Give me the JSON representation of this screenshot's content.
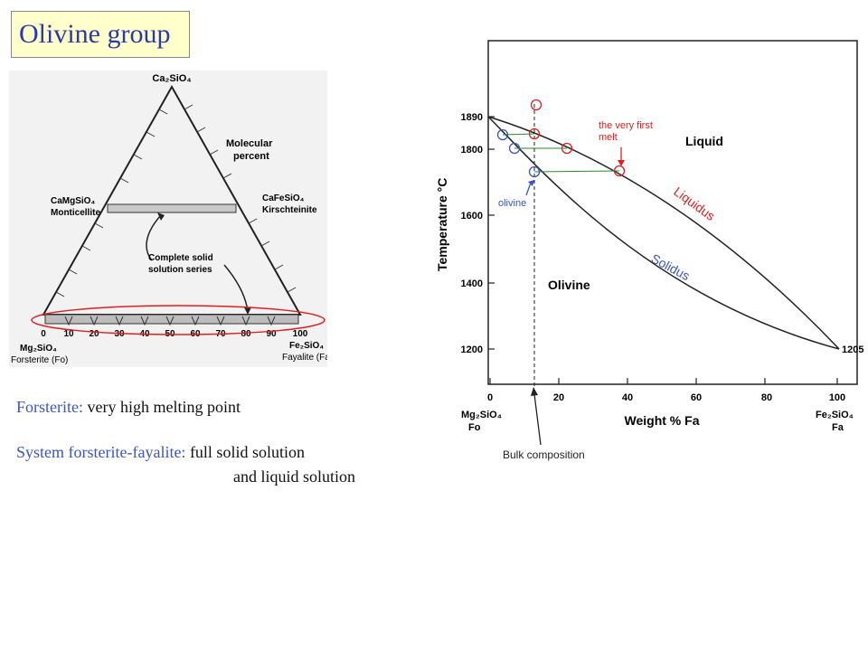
{
  "title": "Olivine group",
  "ternary": {
    "apex_label": "Ca₂SiO₄",
    "left_mid_formula": "CaMgSiO₄",
    "left_mid_name": "Monticellite",
    "right_mid_formula": "CaFeSiO₄",
    "right_mid_name": "Kirschteinite",
    "molecular_line1": "Molecular",
    "molecular_line2": "percent",
    "solid_line1": "Complete solid",
    "solid_line2": "solution series",
    "bottom_left_formula": "Mg₂SiO₄",
    "bottom_left_name": "Forsterite (Fo)",
    "bottom_right_formula": "Fe₂SiO₄",
    "bottom_right_name": "Fayalite (Fa)",
    "ticks": [
      "0",
      "10",
      "20",
      "30",
      "40",
      "50",
      "60",
      "70",
      "80",
      "90",
      "100"
    ]
  },
  "notes": {
    "line1_label": "Forsterite:",
    "line1_text": "very high melting point",
    "line2_label": "System forsterite-fayalite:",
    "line2_text": "full solid solution",
    "line3_text": "and liquid solution"
  },
  "phase_diagram": {
    "ylabel": "Temperature °C",
    "xlabel": "Weight % Fa",
    "x_ticks": [
      "0",
      "20",
      "40",
      "60",
      "80",
      "100"
    ],
    "y_ticks": [
      "1200",
      "1400",
      "1600",
      "1800",
      "1890"
    ],
    "right_temp": "1205",
    "left_end_formula": "Mg₂SiO₄",
    "left_end_abbr": "Fo",
    "right_end_formula": "Fe₂SiO₄",
    "right_end_abbr": "Fa",
    "liquid_label": "Liquid",
    "olivine_label": "Olivine",
    "liquidus_label": "Liquidus",
    "solidus_label": "Solidus",
    "first_melt_line1": "the very first",
    "first_melt_line2": "melt",
    "olivine_note": "olivine",
    "bulk_label": "Bulk composition",
    "colors": {
      "liquidus": "#e02020",
      "solidus": "#3a55c8",
      "tie": "#2a8a2a"
    }
  }
}
